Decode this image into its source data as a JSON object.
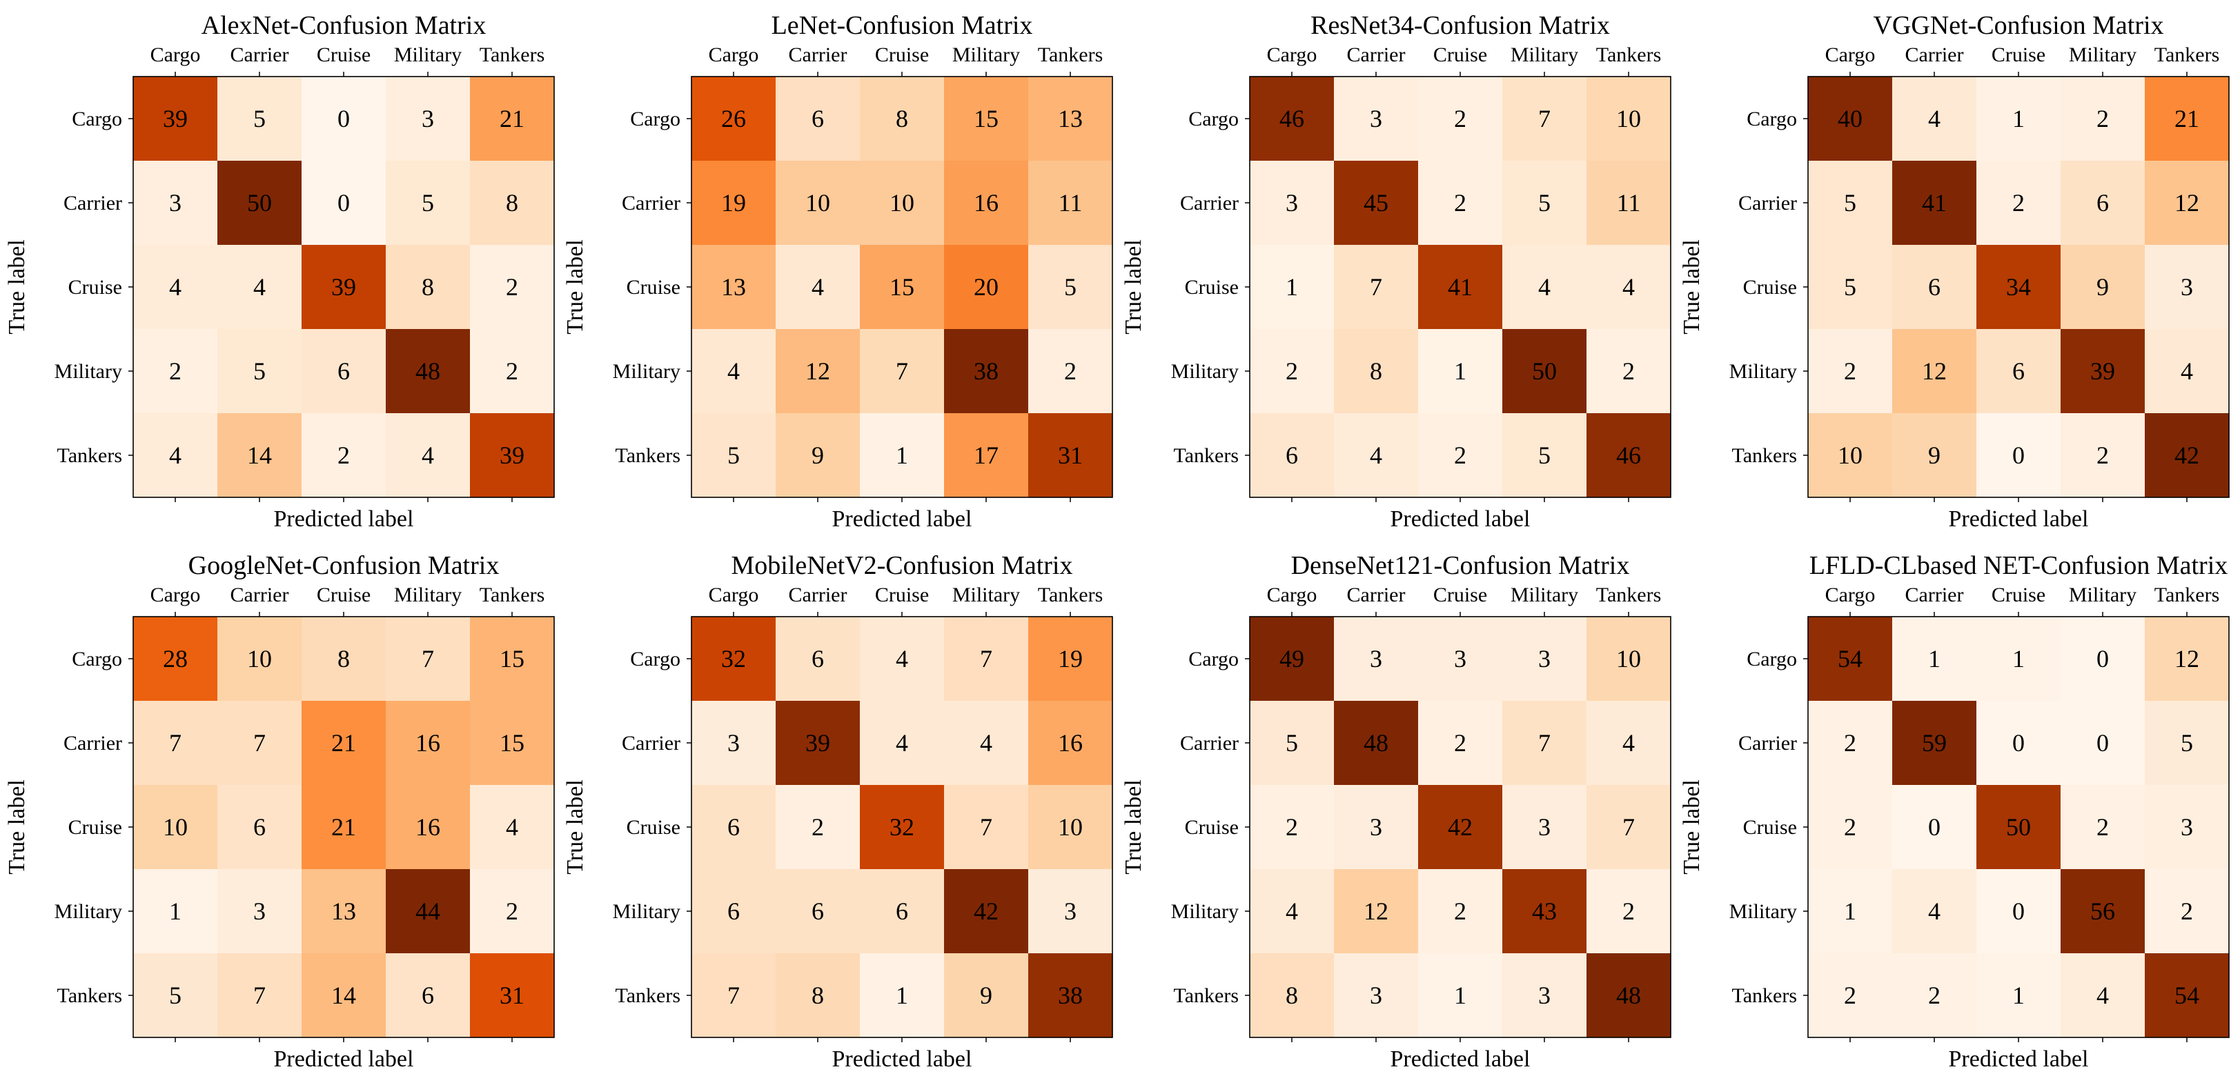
{
  "figure": {
    "colormap": "Oranges",
    "xlabel": "Predicted label",
    "ylabel": "True label",
    "classes": [
      "Cargo",
      "Carrier",
      "Cruise",
      "Military",
      "Tankers"
    ]
  },
  "chart_data": [
    {
      "type": "heatmap",
      "title": "AlexNet-Confusion Matrix",
      "xlabel": "Predicted label",
      "ylabel": "True label",
      "x_categories": [
        "Cargo",
        "Carrier",
        "Cruise",
        "Military",
        "Tankers"
      ],
      "y_categories": [
        "Cargo",
        "Carrier",
        "Cruise",
        "Military",
        "Tankers"
      ],
      "matrix": [
        [
          39,
          5,
          0,
          3,
          21
        ],
        [
          3,
          50,
          0,
          5,
          8
        ],
        [
          4,
          4,
          39,
          8,
          2
        ],
        [
          2,
          5,
          6,
          48,
          2
        ],
        [
          4,
          14,
          2,
          4,
          39
        ]
      ]
    },
    {
      "type": "heatmap",
      "title": "LeNet-Confusion Matrix",
      "xlabel": "Predicted label",
      "ylabel": "True label",
      "x_categories": [
        "Cargo",
        "Carrier",
        "Cruise",
        "Military",
        "Tankers"
      ],
      "y_categories": [
        "Cargo",
        "Carrier",
        "Cruise",
        "Military",
        "Tankers"
      ],
      "matrix": [
        [
          26,
          6,
          8,
          15,
          13
        ],
        [
          19,
          10,
          10,
          16,
          11
        ],
        [
          13,
          4,
          15,
          20,
          5
        ],
        [
          4,
          12,
          7,
          38,
          2
        ],
        [
          5,
          9,
          1,
          17,
          31
        ]
      ]
    },
    {
      "type": "heatmap",
      "title": "ResNet34-Confusion Matrix",
      "xlabel": "Predicted label",
      "ylabel": "True label",
      "x_categories": [
        "Cargo",
        "Carrier",
        "Cruise",
        "Military",
        "Tankers"
      ],
      "y_categories": [
        "Cargo",
        "Carrier",
        "Cruise",
        "Military",
        "Tankers"
      ],
      "matrix": [
        [
          46,
          3,
          2,
          7,
          10
        ],
        [
          3,
          45,
          2,
          5,
          11
        ],
        [
          1,
          7,
          41,
          4,
          4
        ],
        [
          2,
          8,
          1,
          50,
          2
        ],
        [
          6,
          4,
          2,
          5,
          46
        ]
      ]
    },
    {
      "type": "heatmap",
      "title": "VGGNet-Confusion Matrix",
      "xlabel": "Predicted label",
      "ylabel": "True label",
      "x_categories": [
        "Cargo",
        "Carrier",
        "Cruise",
        "Military",
        "Tankers"
      ],
      "y_categories": [
        "Cargo",
        "Carrier",
        "Cruise",
        "Military",
        "Tankers"
      ],
      "matrix": [
        [
          40,
          4,
          1,
          2,
          21
        ],
        [
          5,
          41,
          2,
          6,
          12
        ],
        [
          5,
          6,
          34,
          9,
          3
        ],
        [
          2,
          12,
          6,
          39,
          4
        ],
        [
          10,
          9,
          0,
          2,
          42
        ]
      ]
    },
    {
      "type": "heatmap",
      "title": "GoogleNet-Confusion Matrix",
      "xlabel": "Predicted label",
      "ylabel": "True label",
      "x_categories": [
        "Cargo",
        "Carrier",
        "Cruise",
        "Military",
        "Tankers"
      ],
      "y_categories": [
        "Cargo",
        "Carrier",
        "Cruise",
        "Military",
        "Tankers"
      ],
      "matrix": [
        [
          28,
          10,
          8,
          7,
          15
        ],
        [
          7,
          7,
          21,
          16,
          15
        ],
        [
          10,
          6,
          21,
          16,
          4
        ],
        [
          1,
          3,
          13,
          44,
          2
        ],
        [
          5,
          7,
          14,
          6,
          31
        ]
      ]
    },
    {
      "type": "heatmap",
      "title": "MobileNetV2-Confusion Matrix",
      "xlabel": "Predicted label",
      "ylabel": "True label",
      "x_categories": [
        "Cargo",
        "Carrier",
        "Cruise",
        "Military",
        "Tankers"
      ],
      "y_categories": [
        "Cargo",
        "Carrier",
        "Cruise",
        "Military",
        "Tankers"
      ],
      "matrix": [
        [
          32,
          6,
          4,
          7,
          19
        ],
        [
          3,
          39,
          4,
          4,
          16
        ],
        [
          6,
          2,
          32,
          7,
          10
        ],
        [
          6,
          6,
          6,
          42,
          3
        ],
        [
          7,
          8,
          1,
          9,
          38
        ]
      ]
    },
    {
      "type": "heatmap",
      "title": "DenseNet121-Confusion Matrix",
      "xlabel": "Predicted label",
      "ylabel": "True label",
      "x_categories": [
        "Cargo",
        "Carrier",
        "Cruise",
        "Military",
        "Tankers"
      ],
      "y_categories": [
        "Cargo",
        "Carrier",
        "Cruise",
        "Military",
        "Tankers"
      ],
      "matrix": [
        [
          49,
          3,
          3,
          3,
          10
        ],
        [
          5,
          48,
          2,
          7,
          4
        ],
        [
          2,
          3,
          42,
          3,
          7
        ],
        [
          4,
          12,
          2,
          43,
          2
        ],
        [
          8,
          3,
          1,
          3,
          48
        ]
      ]
    },
    {
      "type": "heatmap",
      "title": "LFLD-CLbased NET-Confusion Matrix",
      "xlabel": "Predicted label",
      "ylabel": "True label",
      "x_categories": [
        "Cargo",
        "Carrier",
        "Cruise",
        "Military",
        "Tankers"
      ],
      "y_categories": [
        "Cargo",
        "Carrier",
        "Cruise",
        "Military",
        "Tankers"
      ],
      "matrix": [
        [
          54,
          1,
          1,
          0,
          12
        ],
        [
          2,
          59,
          0,
          0,
          5
        ],
        [
          2,
          0,
          50,
          2,
          3
        ],
        [
          1,
          4,
          0,
          56,
          2
        ],
        [
          2,
          2,
          1,
          4,
          54
        ]
      ]
    }
  ]
}
